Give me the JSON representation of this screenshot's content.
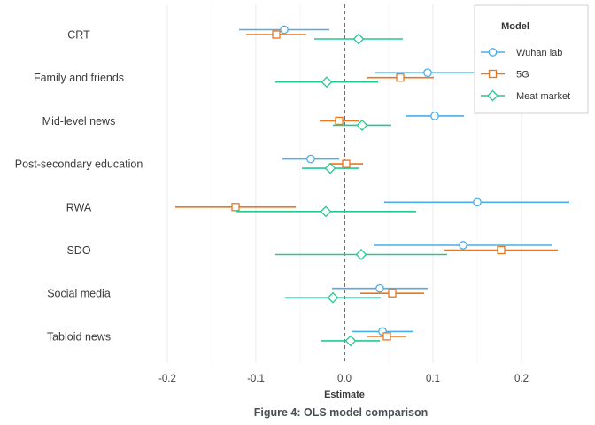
{
  "chart_data": {
    "type": "scatter",
    "subtype": "coefficient-plot",
    "caption": "Figure 4: OLS model comparison",
    "xlabel": "Estimate",
    "xlim": [
      -0.24,
      0.26
    ],
    "xticks": [
      -0.2,
      -0.1,
      0.0,
      0.1,
      0.2
    ],
    "xtick_labels": [
      "-0.2",
      "-0.1",
      "0.0",
      "0.1",
      "0.2"
    ],
    "zero_line": true,
    "categories": [
      "CRT",
      "Family and friends",
      "Mid-level news",
      "Post-secondary education",
      "RWA",
      "SDO",
      "Social media",
      "Tabloid news"
    ],
    "legend": {
      "title": "Model",
      "position": "top-right"
    },
    "series": [
      {
        "name": "Wuhan lab",
        "color": "#4aaee8",
        "marker": "circle",
        "estimate": [
          -0.068,
          0.094,
          0.102,
          -0.038,
          0.15,
          0.134,
          0.04,
          0.043
        ],
        "lower": [
          -0.119,
          0.035,
          0.069,
          -0.07,
          0.045,
          0.033,
          -0.014,
          0.008
        ],
        "upper": [
          -0.017,
          0.153,
          0.135,
          -0.006,
          0.254,
          0.235,
          0.094,
          0.078
        ]
      },
      {
        "name": "5G",
        "color": "#e8771e",
        "marker": "square",
        "estimate": [
          -0.077,
          0.063,
          -0.006,
          0.002,
          -0.123,
          0.177,
          0.054,
          0.048
        ],
        "lower": [
          -0.111,
          0.025,
          -0.028,
          -0.017,
          -0.191,
          0.113,
          0.018,
          0.026
        ],
        "upper": [
          -0.043,
          0.101,
          0.016,
          0.021,
          -0.055,
          0.241,
          0.09,
          0.07
        ]
      },
      {
        "name": "Meat market",
        "color": "#22c990",
        "marker": "diamond",
        "estimate": [
          0.016,
          -0.02,
          0.02,
          -0.016,
          -0.021,
          0.019,
          -0.013,
          0.007
        ],
        "lower": [
          -0.034,
          -0.078,
          -0.013,
          -0.048,
          -0.123,
          -0.078,
          -0.067,
          -0.026
        ],
        "upper": [
          0.066,
          0.038,
          0.053,
          0.016,
          0.081,
          0.116,
          0.041,
          0.04
        ]
      }
    ]
  }
}
